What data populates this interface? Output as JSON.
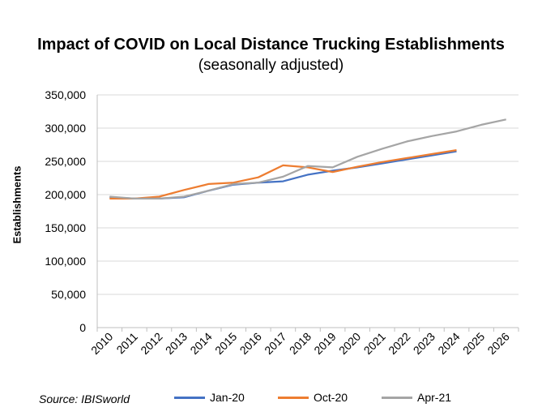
{
  "chart_data": {
    "type": "line",
    "title": "Impact of COVID on Local Distance Trucking Establishments",
    "subtitle": "(seasonally adjusted)",
    "ylabel": "Establishments",
    "xlabel": "",
    "x": [
      "2010",
      "2011",
      "2012",
      "2013",
      "2014",
      "2015",
      "2016",
      "2017",
      "2018",
      "2019",
      "2020",
      "2021",
      "2022",
      "2023",
      "2024",
      "2025",
      "2026"
    ],
    "ylim": [
      0,
      350000
    ],
    "yticks": [
      "0",
      "50,000",
      "100,000",
      "150,000",
      "200,000",
      "250,000",
      "300,000",
      "350,000"
    ],
    "ytick_values": [
      0,
      50000,
      100000,
      150000,
      200000,
      250000,
      300000,
      350000
    ],
    "grid": true,
    "legend_position": "bottom",
    "series": [
      {
        "name": "Jan-20",
        "color": "#4472C4",
        "values": [
          196000,
          194000,
          194000,
          196000,
          206000,
          215000,
          218000,
          220000,
          230000,
          236000,
          241000,
          247000,
          253000,
          259000,
          265000,
          null,
          null
        ]
      },
      {
        "name": "Oct-20",
        "color": "#ED7D31",
        "values": [
          194000,
          194000,
          197000,
          207000,
          216000,
          218000,
          226000,
          244000,
          241000,
          234000,
          242000,
          249000,
          255000,
          261000,
          267000,
          null,
          null
        ]
      },
      {
        "name": "Apr-21",
        "color": "#A5A5A5",
        "values": [
          197000,
          194000,
          194000,
          197000,
          206000,
          216000,
          218000,
          227000,
          243000,
          241000,
          257000,
          269000,
          280000,
          288000,
          295000,
          305000,
          313000
        ]
      }
    ]
  },
  "source": "Source: IBISworld"
}
